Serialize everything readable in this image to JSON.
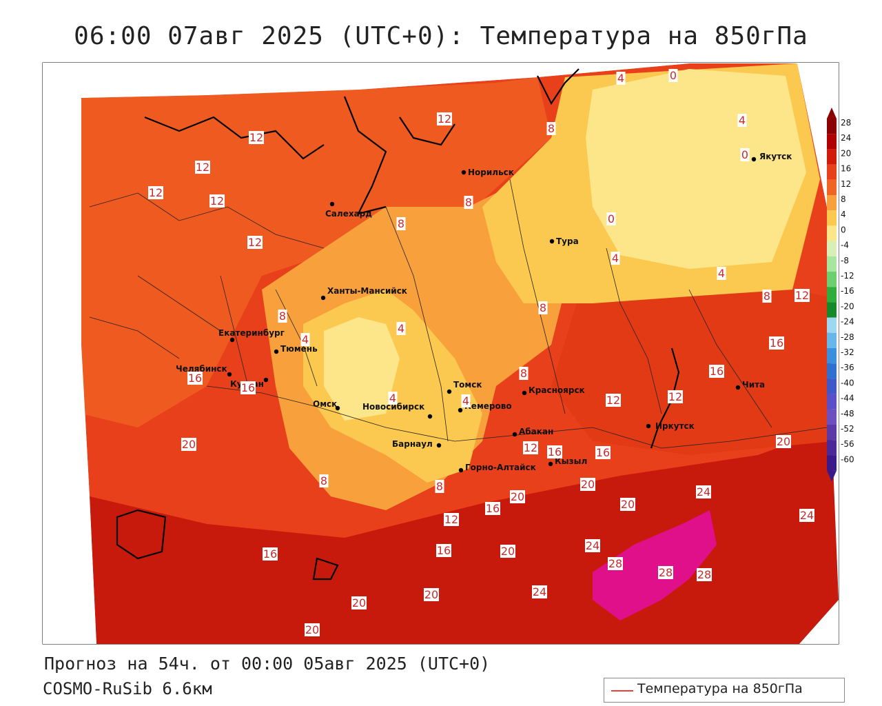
{
  "title": "06:00 07авг 2025 (UTC+0): Температура на 850гПа",
  "forecast_line": "Прогноз на 54ч. от 00:00 05авг 2025 (UTC+0)",
  "model_line": "COSMO-RuSib 6.6км",
  "legend_label": "Температура на 850гПа",
  "line_color": "#e8403a",
  "colorbar": {
    "ticks": [
      "28",
      "24",
      "20",
      "16",
      "12",
      "8",
      "4",
      "0",
      "-4",
      "-8",
      "-12",
      "-16",
      "-20",
      "-24",
      "-28",
      "-32",
      "-36",
      "-40",
      "-44",
      "-48",
      "-52",
      "-56",
      "-60"
    ],
    "colors": [
      "#8b0000",
      "#b00000",
      "#d21a0a",
      "#e8401a",
      "#f06424",
      "#f8a03c",
      "#fbc94f",
      "#fde68a",
      "#d8f0b8",
      "#a8e6a0",
      "#6ccf70",
      "#2fae3e",
      "#168a2a",
      "#9ed8f0",
      "#66b8ea",
      "#3b8fdc",
      "#2f6fcf",
      "#3f57c9",
      "#5a4fc8",
      "#6e4fc0",
      "#5b3aa8",
      "#4a2a98",
      "#3a1a88"
    ]
  },
  "cities": [
    {
      "name": "Норильск"
    },
    {
      "name": "Салехард"
    },
    {
      "name": "Тура"
    },
    {
      "name": "Якутск"
    },
    {
      "name": "Ханты-Мансийск"
    },
    {
      "name": "Екатеринбург"
    },
    {
      "name": "Тюмень"
    },
    {
      "name": "Челябинск"
    },
    {
      "name": "Курган"
    },
    {
      "name": "Омск"
    },
    {
      "name": "Новосибирск"
    },
    {
      "name": "Томск"
    },
    {
      "name": "Кемерово"
    },
    {
      "name": "Красноярск"
    },
    {
      "name": "Барнаул"
    },
    {
      "name": "Абакан"
    },
    {
      "name": "Горно-Алтайск"
    },
    {
      "name": "Кызыл"
    },
    {
      "name": "Иркутск"
    },
    {
      "name": "Чита"
    }
  ],
  "isotherm_labels": [
    "4",
    "0",
    "4",
    "0",
    "12",
    "12",
    "12",
    "8",
    "12",
    "12",
    "8",
    "12",
    "0",
    "4",
    "8",
    "4",
    "8",
    "12",
    "8",
    "4",
    "4",
    "8",
    "16",
    "16",
    "8",
    "4",
    "4",
    "12",
    "12",
    "16",
    "16",
    "20",
    "16",
    "12",
    "8",
    "8",
    "12",
    "16",
    "20",
    "16",
    "20",
    "20",
    "20",
    "24",
    "24",
    "24",
    "28",
    "28",
    "28",
    "16",
    "16",
    "20",
    "20",
    "24",
    "20",
    "20"
  ]
}
